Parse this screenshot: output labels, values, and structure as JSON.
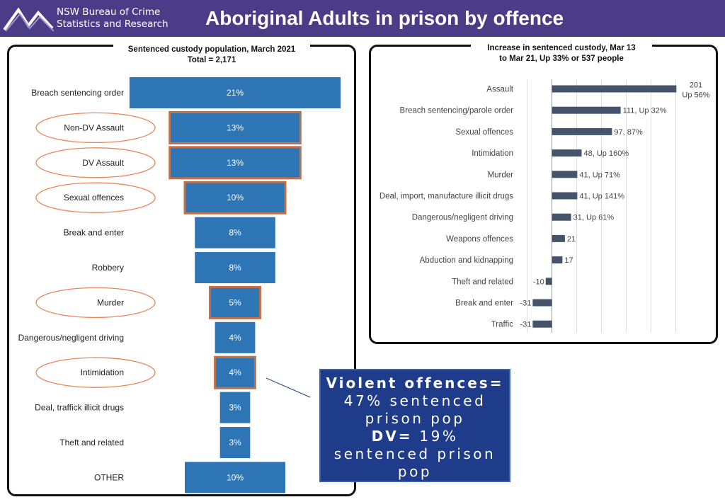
{
  "header": {
    "org_line1": "NSW Bureau of Crime",
    "org_line2": "Statistics and Research",
    "title": "Aboriginal Adults in prison by offence",
    "background": "#4a3c86"
  },
  "chart_data": [
    {
      "type": "bar",
      "orientation": "horizontal-centered-funnel",
      "title_line1": "Sentenced custody population, March 2021",
      "title_line2": "Total = 2,171",
      "categories": [
        "Breach sentencing order",
        "Non-DV Assault",
        "DV Assault",
        "Sexual offences",
        "Break and enter",
        "Robbery",
        "Murder",
        "Dangerous/negligent driving",
        "Intimidation",
        "Deal, traffick illicit drugs",
        "Theft and related",
        "OTHER"
      ],
      "values": [
        21,
        13,
        13,
        10,
        8,
        8,
        5,
        4,
        4,
        3,
        3,
        10
      ],
      "value_labels": [
        "21%",
        "13%",
        "13%",
        "10%",
        "8%",
        "8%",
        "5%",
        "4%",
        "4%",
        "3%",
        "3%",
        "10%"
      ],
      "highlighted": [
        "Non-DV Assault",
        "DV Assault",
        "Sexual offences",
        "Murder",
        "Intimidation"
      ],
      "bar_color": "#2e75b6",
      "highlight_color": "#c0714a",
      "unit": "%"
    },
    {
      "type": "bar",
      "orientation": "horizontal",
      "title_line1": "Increase in sentenced custody, Mar 13",
      "title_line2": "to Mar 21, Up 33% or 537 people",
      "categories": [
        "Assault",
        "Breach sentencing/parole order",
        "Sexual offences",
        "Intimidation",
        "Murder",
        "Deal, import, manufacture illicit drugs",
        "Dangerous/negligent driving",
        "Weapons offences",
        "Abduction and kidnapping",
        "Theft and related",
        "Break and enter",
        "Traffic"
      ],
      "values": [
        201,
        111,
        97,
        48,
        41,
        41,
        31,
        21,
        17,
        -10,
        -31,
        -31
      ],
      "labels": [
        "201|Up 56%",
        "111, Up 32%",
        "97, 87%",
        "48, Up 160%",
        "41, Up 71%",
        "41, Up 141%",
        "31, Up 61%",
        "21",
        "17",
        "-10",
        "-31",
        "-31"
      ],
      "xlim": [
        -40,
        220
      ],
      "grid": true,
      "bar_color": "#44546a"
    }
  ],
  "callout": {
    "line1": "Violent offences=",
    "line2": "47% sentenced",
    "line3": "prison pop",
    "line4_bold": "DV=",
    "line4_rest": " 19%",
    "line5": "sentenced prison",
    "line6": "pop"
  }
}
